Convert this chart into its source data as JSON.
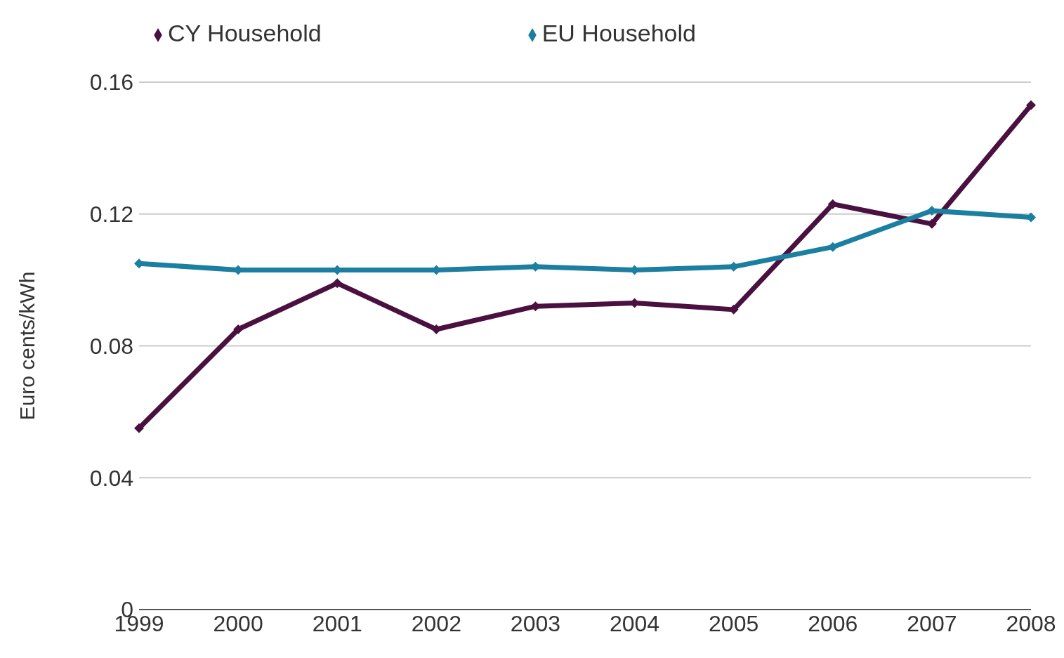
{
  "chart_data": {
    "type": "line",
    "ylabel": "Euro cents/kWh",
    "categories": [
      "1999",
      "2000",
      "2001",
      "2002",
      "2003",
      "2004",
      "2005",
      "2006",
      "2007",
      "2008"
    ],
    "series": [
      {
        "name": "CY Household",
        "color": "#4a1040",
        "values": [
          0.055,
          0.085,
          0.099,
          0.085,
          0.092,
          0.093,
          0.091,
          0.123,
          0.117,
          0.153
        ]
      },
      {
        "name": "EU Household",
        "color": "#1a7fa0",
        "values": [
          0.105,
          0.103,
          0.103,
          0.103,
          0.104,
          0.103,
          0.104,
          0.11,
          0.121,
          0.119
        ]
      }
    ],
    "ylim": [
      0,
      0.16
    ],
    "yticks": [
      0,
      0.04,
      0.08,
      0.12,
      0.16
    ],
    "grid": "y",
    "legend": "top",
    "marker": "diamond",
    "line_style": "solid"
  }
}
